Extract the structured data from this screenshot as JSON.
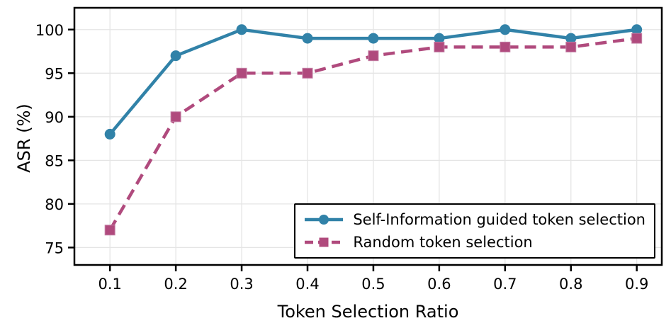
{
  "figure": {
    "background": "#ffffff"
  },
  "chart_data": {
    "type": "line",
    "title": "",
    "xlabel": "Token Selection Ratio",
    "ylabel": "ASR (%)",
    "x": [
      0.1,
      0.2,
      0.3,
      0.4,
      0.5,
      0.6,
      0.7,
      0.8,
      0.9
    ],
    "x_tick_labels": [
      "0.1",
      "0.2",
      "0.3",
      "0.4",
      "0.5",
      "0.6",
      "0.7",
      "0.8",
      "0.9"
    ],
    "y_ticks": [
      75,
      80,
      85,
      90,
      95,
      100
    ],
    "y_tick_labels": [
      "75",
      "80",
      "85",
      "90",
      "95",
      "100"
    ],
    "xlim": [
      0.046,
      0.938
    ],
    "ylim": [
      73,
      102.5
    ],
    "grid": true,
    "grid_color": "#e5e5e5",
    "axis_color": "#000000",
    "legend_position": "lower right",
    "series": [
      {
        "name": "Self-Information guided token selection",
        "color": "#3182a8",
        "marker": "circle",
        "line_style": "solid",
        "values": [
          88,
          97,
          100,
          99,
          99,
          99,
          100,
          99,
          100
        ]
      },
      {
        "name": "Random token selection",
        "color": "#b04a7d",
        "marker": "square",
        "line_style": "dashed",
        "values": [
          77,
          90,
          95,
          95,
          97,
          98,
          98,
          98,
          99
        ]
      }
    ]
  }
}
